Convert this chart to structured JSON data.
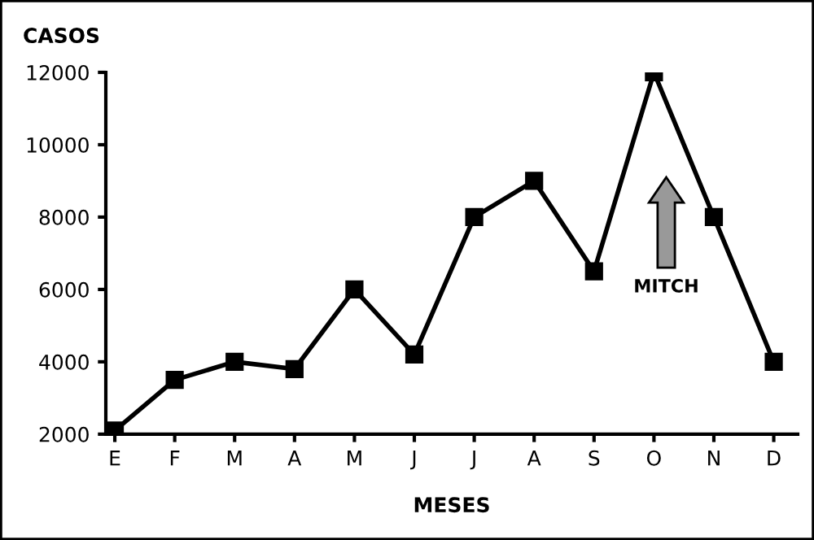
{
  "chart_data": {
    "type": "line",
    "ylabel": "CASOS",
    "xlabel": "MESES",
    "categories": [
      "E",
      "F",
      "M",
      "A",
      "M",
      "J",
      "J",
      "A",
      "S",
      "O",
      "N",
      "D"
    ],
    "series": [
      {
        "color": "#000000",
        "values": [
          2100,
          3500,
          4000,
          3800,
          6000,
          4200,
          8000,
          9000,
          6500,
          12000,
          8000,
          4000
        ]
      }
    ],
    "ylim": [
      2000,
      12000
    ],
    "yticks": [
      2000,
      4000,
      6000,
      8000,
      10000,
      12000
    ],
    "grid": false,
    "legend": false,
    "marker": "square",
    "line_style": "solid",
    "annotations": [
      "MITCH"
    ]
  }
}
